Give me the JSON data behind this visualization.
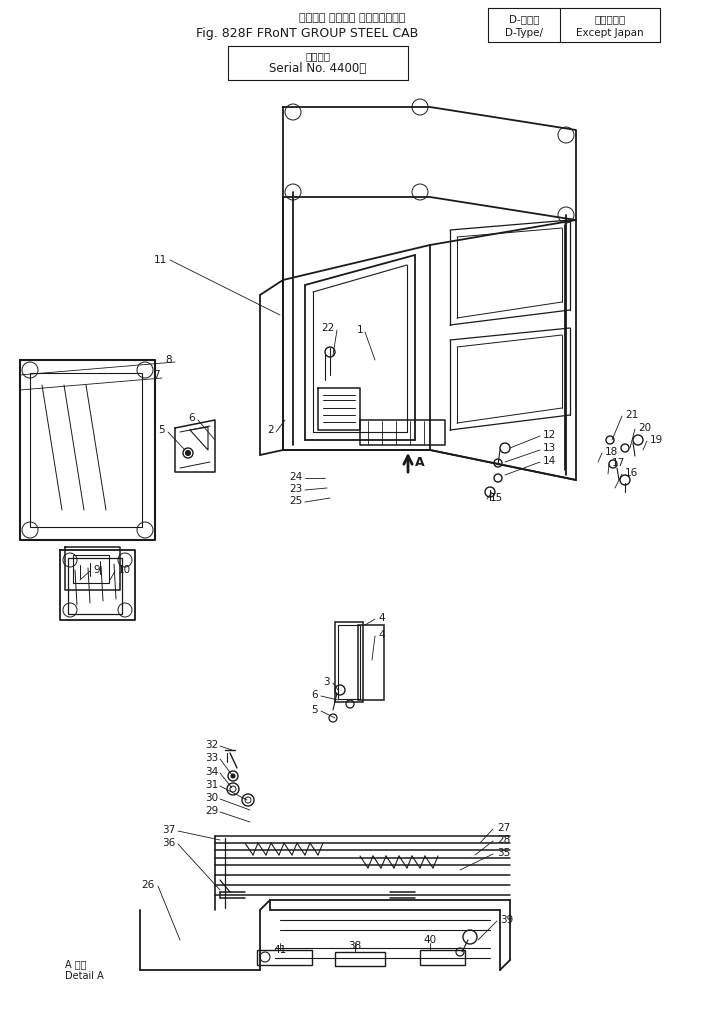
{
  "bg_color": "#ffffff",
  "line_color": "#1a1a1a",
  "title": {
    "line1_jp": "フロント グループ ステールキャブ",
    "line1_right1_jp": "D-タイプ",
    "line1_right1_en": "D-Type/",
    "line1_right2_jp": "海　外　向",
    "line1_right2_en": "Except Japan",
    "line2": "Fig. 828F FRoNT GROUP STEEL CAB",
    "line3_jp": "適用号機",
    "line4": "Serial No. 4400〜"
  },
  "figsize": [
    7.04,
    10.25
  ],
  "dpi": 100
}
